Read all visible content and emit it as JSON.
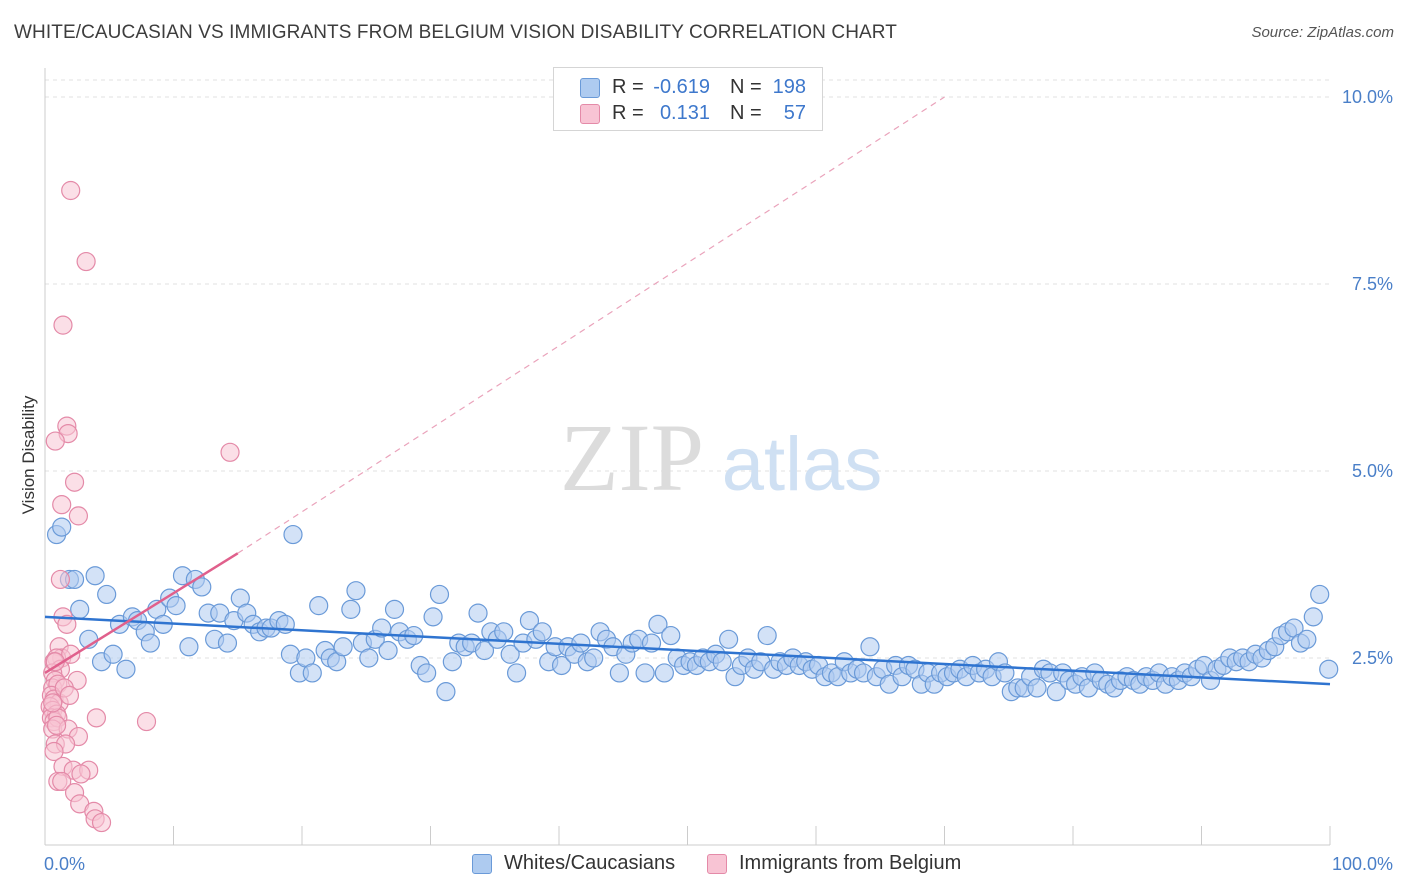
{
  "title": "WHITE/CAUCASIAN VS IMMIGRANTS FROM BELGIUM VISION DISABILITY CORRELATION CHART",
  "source": "Source: ZipAtlas.com",
  "watermark": {
    "zip": "ZIP",
    "atlas": "atlas"
  },
  "legend_top": {
    "rows": [
      {
        "r_label": "R =",
        "r_value": "-0.619",
        "n_label": "N =",
        "n_value": "198",
        "color": "#aecbf0",
        "border": "#6a9ad8"
      },
      {
        "r_label": "R =",
        "r_value": "0.131",
        "n_label": "N =",
        "n_value": "57",
        "color": "#f8c4d4",
        "border": "#e48aa8"
      }
    ]
  },
  "legend_bottom": {
    "items": [
      {
        "label": "Whites/Caucasians",
        "color": "#aecbf0",
        "border": "#6a9ad8"
      },
      {
        "label": "Immigrants from Belgium",
        "color": "#f8c4d4",
        "border": "#e48aa8"
      }
    ]
  },
  "chart_data": {
    "type": "scatter",
    "title": "WHITE/CAUCASIAN VS IMMIGRANTS FROM BELGIUM VISION DISABILITY CORRELATION CHART",
    "xlabel": "",
    "ylabel": "Vision Disability",
    "xlim": [
      0,
      100
    ],
    "ylim": [
      0,
      10
    ],
    "x_tick_labels": [
      "0.0%",
      "100.0%"
    ],
    "y_ticks": [
      2.5,
      5.0,
      7.5,
      10.0
    ],
    "y_tick_labels": [
      "2.5%",
      "5.0%",
      "7.5%",
      "10.0%"
    ],
    "grid": true,
    "legend_position": "top-center",
    "series": [
      {
        "name": "Whites/Caucasians",
        "color": "#aecbf0",
        "stroke": "#6a9ad8",
        "trend": {
          "x": [
            0,
            100
          ],
          "y": [
            3.05,
            2.15
          ],
          "color": "#2f74d0"
        },
        "points": [
          [
            0.9,
            4.15
          ],
          [
            1.3,
            4.25
          ],
          [
            1.9,
            3.55
          ],
          [
            2.3,
            3.55
          ],
          [
            2.7,
            3.15
          ],
          [
            3.4,
            2.75
          ],
          [
            4.4,
            2.45
          ],
          [
            3.9,
            3.6
          ],
          [
            4.8,
            3.35
          ],
          [
            5.3,
            2.55
          ],
          [
            5.8,
            2.95
          ],
          [
            6.3,
            2.35
          ],
          [
            6.8,
            3.05
          ],
          [
            7.2,
            3.0
          ],
          [
            7.8,
            2.85
          ],
          [
            8.2,
            2.7
          ],
          [
            8.7,
            3.15
          ],
          [
            9.2,
            2.95
          ],
          [
            9.7,
            3.3
          ],
          [
            10.2,
            3.2
          ],
          [
            10.7,
            3.6
          ],
          [
            11.2,
            2.65
          ],
          [
            11.7,
            3.55
          ],
          [
            12.2,
            3.45
          ],
          [
            12.7,
            3.1
          ],
          [
            13.2,
            2.75
          ],
          [
            13.6,
            3.1
          ],
          [
            14.2,
            2.7
          ],
          [
            14.7,
            3.0
          ],
          [
            15.2,
            3.3
          ],
          [
            15.7,
            3.1
          ],
          [
            16.2,
            2.95
          ],
          [
            16.7,
            2.85
          ],
          [
            17.2,
            2.9
          ],
          [
            17.6,
            2.9
          ],
          [
            18.2,
            3.0
          ],
          [
            18.7,
            2.95
          ],
          [
            19.3,
            4.15
          ],
          [
            19.1,
            2.55
          ],
          [
            19.8,
            2.3
          ],
          [
            20.3,
            2.5
          ],
          [
            20.8,
            2.3
          ],
          [
            21.3,
            3.2
          ],
          [
            21.8,
            2.6
          ],
          [
            22.2,
            2.5
          ],
          [
            22.7,
            2.45
          ],
          [
            23.2,
            2.65
          ],
          [
            23.8,
            3.15
          ],
          [
            24.2,
            3.4
          ],
          [
            24.7,
            2.7
          ],
          [
            25.2,
            2.5
          ],
          [
            25.7,
            2.75
          ],
          [
            26.2,
            2.9
          ],
          [
            26.7,
            2.6
          ],
          [
            27.2,
            3.15
          ],
          [
            27.6,
            2.85
          ],
          [
            28.2,
            2.75
          ],
          [
            28.7,
            2.8
          ],
          [
            29.2,
            2.4
          ],
          [
            29.7,
            2.3
          ],
          [
            30.2,
            3.05
          ],
          [
            30.7,
            3.35
          ],
          [
            31.2,
            2.05
          ],
          [
            31.7,
            2.45
          ],
          [
            32.2,
            2.7
          ],
          [
            32.7,
            2.65
          ],
          [
            33.2,
            2.7
          ],
          [
            33.7,
            3.1
          ],
          [
            34.2,
            2.6
          ],
          [
            34.7,
            2.85
          ],
          [
            35.2,
            2.75
          ],
          [
            35.7,
            2.85
          ],
          [
            36.2,
            2.55
          ],
          [
            36.7,
            2.3
          ],
          [
            37.2,
            2.7
          ],
          [
            37.7,
            3.0
          ],
          [
            38.2,
            2.75
          ],
          [
            38.7,
            2.85
          ],
          [
            39.2,
            2.45
          ],
          [
            39.7,
            2.65
          ],
          [
            40.2,
            2.4
          ],
          [
            40.7,
            2.65
          ],
          [
            41.2,
            2.55
          ],
          [
            41.7,
            2.7
          ],
          [
            42.2,
            2.45
          ],
          [
            42.7,
            2.5
          ],
          [
            43.2,
            2.85
          ],
          [
            43.7,
            2.75
          ],
          [
            44.2,
            2.65
          ],
          [
            44.7,
            2.3
          ],
          [
            45.2,
            2.55
          ],
          [
            45.7,
            2.7
          ],
          [
            46.2,
            2.75
          ],
          [
            46.7,
            2.3
          ],
          [
            47.2,
            2.7
          ],
          [
            47.7,
            2.95
          ],
          [
            48.2,
            2.3
          ],
          [
            48.7,
            2.8
          ],
          [
            49.2,
            2.5
          ],
          [
            49.7,
            2.4
          ],
          [
            50.2,
            2.45
          ],
          [
            50.7,
            2.4
          ],
          [
            51.2,
            2.5
          ],
          [
            51.7,
            2.45
          ],
          [
            52.2,
            2.55
          ],
          [
            52.7,
            2.45
          ],
          [
            53.2,
            2.75
          ],
          [
            53.7,
            2.25
          ],
          [
            54.2,
            2.4
          ],
          [
            54.7,
            2.5
          ],
          [
            55.2,
            2.35
          ],
          [
            55.7,
            2.45
          ],
          [
            56.2,
            2.8
          ],
          [
            56.7,
            2.35
          ],
          [
            57.2,
            2.45
          ],
          [
            57.7,
            2.4
          ],
          [
            58.2,
            2.5
          ],
          [
            58.7,
            2.4
          ],
          [
            59.2,
            2.45
          ],
          [
            59.7,
            2.35
          ],
          [
            60.2,
            2.4
          ],
          [
            60.7,
            2.25
          ],
          [
            61.2,
            2.3
          ],
          [
            61.7,
            2.25
          ],
          [
            62.2,
            2.45
          ],
          [
            62.7,
            2.3
          ],
          [
            63.2,
            2.35
          ],
          [
            63.7,
            2.3
          ],
          [
            64.2,
            2.65
          ],
          [
            64.7,
            2.25
          ],
          [
            65.2,
            2.35
          ],
          [
            65.7,
            2.15
          ],
          [
            66.2,
            2.4
          ],
          [
            66.7,
            2.25
          ],
          [
            67.2,
            2.4
          ],
          [
            67.7,
            2.35
          ],
          [
            68.2,
            2.15
          ],
          [
            68.7,
            2.3
          ],
          [
            69.2,
            2.15
          ],
          [
            69.7,
            2.3
          ],
          [
            70.2,
            2.25
          ],
          [
            70.7,
            2.3
          ],
          [
            71.2,
            2.35
          ],
          [
            71.7,
            2.25
          ],
          [
            72.2,
            2.4
          ],
          [
            72.7,
            2.3
          ],
          [
            73.2,
            2.35
          ],
          [
            73.7,
            2.25
          ],
          [
            74.2,
            2.45
          ],
          [
            74.7,
            2.3
          ],
          [
            75.2,
            2.05
          ],
          [
            75.7,
            2.1
          ],
          [
            76.2,
            2.1
          ],
          [
            76.7,
            2.25
          ],
          [
            77.2,
            2.1
          ],
          [
            77.7,
            2.35
          ],
          [
            78.2,
            2.3
          ],
          [
            78.7,
            2.05
          ],
          [
            79.2,
            2.3
          ],
          [
            79.7,
            2.2
          ],
          [
            80.2,
            2.15
          ],
          [
            80.7,
            2.25
          ],
          [
            81.2,
            2.1
          ],
          [
            81.7,
            2.3
          ],
          [
            82.2,
            2.2
          ],
          [
            82.7,
            2.15
          ],
          [
            83.2,
            2.1
          ],
          [
            83.7,
            2.2
          ],
          [
            84.2,
            2.25
          ],
          [
            84.7,
            2.2
          ],
          [
            85.2,
            2.15
          ],
          [
            85.7,
            2.25
          ],
          [
            86.2,
            2.2
          ],
          [
            86.7,
            2.3
          ],
          [
            87.2,
            2.15
          ],
          [
            87.7,
            2.25
          ],
          [
            88.2,
            2.2
          ],
          [
            88.7,
            2.3
          ],
          [
            89.2,
            2.25
          ],
          [
            89.7,
            2.35
          ],
          [
            90.2,
            2.4
          ],
          [
            90.7,
            2.2
          ],
          [
            91.2,
            2.35
          ],
          [
            91.7,
            2.4
          ],
          [
            92.2,
            2.5
          ],
          [
            92.7,
            2.45
          ],
          [
            93.2,
            2.5
          ],
          [
            93.7,
            2.45
          ],
          [
            94.2,
            2.55
          ],
          [
            94.7,
            2.5
          ],
          [
            95.2,
            2.6
          ],
          [
            95.7,
            2.65
          ],
          [
            96.2,
            2.8
          ],
          [
            96.7,
            2.85
          ],
          [
            97.2,
            2.9
          ],
          [
            97.7,
            2.7
          ],
          [
            98.2,
            2.75
          ],
          [
            98.7,
            3.05
          ],
          [
            99.2,
            3.35
          ],
          [
            99.9,
            2.35
          ]
        ]
      },
      {
        "name": "Immigrants from Belgium",
        "color": "#f8c4d4",
        "stroke": "#e48aa8",
        "trend": {
          "x": [
            0,
            15
          ],
          "y": [
            2.3,
            3.9
          ],
          "dashed_to": [
            70,
            10.0
          ],
          "color": "#e0608c"
        },
        "points": [
          [
            2.0,
            8.75
          ],
          [
            3.2,
            7.8
          ],
          [
            1.4,
            6.95
          ],
          [
            1.7,
            5.6
          ],
          [
            1.8,
            5.5
          ],
          [
            0.8,
            5.4
          ],
          [
            14.4,
            5.25
          ],
          [
            2.3,
            4.85
          ],
          [
            1.3,
            4.55
          ],
          [
            2.6,
            4.4
          ],
          [
            1.2,
            3.55
          ],
          [
            1.4,
            3.05
          ],
          [
            1.7,
            2.95
          ],
          [
            1.1,
            2.65
          ],
          [
            1.3,
            2.5
          ],
          [
            0.9,
            2.5
          ],
          [
            0.7,
            2.45
          ],
          [
            1.2,
            2.35
          ],
          [
            2.0,
            2.55
          ],
          [
            0.6,
            2.3
          ],
          [
            0.8,
            2.2
          ],
          [
            0.6,
            2.1
          ],
          [
            1.0,
            2.15
          ],
          [
            2.5,
            2.2
          ],
          [
            0.5,
            2.0
          ],
          [
            0.7,
            1.95
          ],
          [
            1.1,
            1.9
          ],
          [
            0.4,
            1.85
          ],
          [
            0.6,
            1.8
          ],
          [
            0.9,
            1.75
          ],
          [
            0.5,
            1.7
          ],
          [
            0.7,
            1.65
          ],
          [
            1.0,
            1.7
          ],
          [
            4.0,
            1.7
          ],
          [
            7.9,
            1.65
          ],
          [
            0.6,
            1.55
          ],
          [
            1.8,
            1.55
          ],
          [
            2.6,
            1.45
          ],
          [
            0.8,
            1.35
          ],
          [
            1.6,
            1.35
          ],
          [
            0.7,
            1.25
          ],
          [
            1.4,
            1.05
          ],
          [
            2.2,
            1.0
          ],
          [
            3.4,
            1.0
          ],
          [
            2.8,
            0.95
          ],
          [
            1.0,
            0.85
          ],
          [
            1.3,
            0.85
          ],
          [
            2.3,
            0.7
          ],
          [
            2.7,
            0.55
          ],
          [
            3.8,
            0.45
          ],
          [
            3.9,
            0.35
          ],
          [
            4.4,
            0.3
          ],
          [
            0.9,
            1.6
          ],
          [
            0.6,
            1.9
          ],
          [
            1.5,
            2.1
          ],
          [
            0.8,
            2.45
          ],
          [
            1.9,
            2.0
          ]
        ]
      }
    ]
  }
}
